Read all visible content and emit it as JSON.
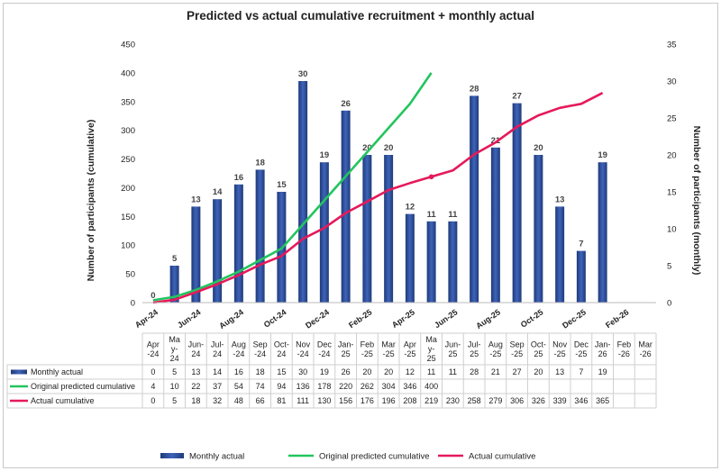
{
  "chart_data": {
    "type": "bar",
    "title": "Predicted vs actual cumulative recruitment + monthly actual",
    "ylabel_left": "Number of participants (cumulative)",
    "ylabel_right": "Number of participants (monthly)",
    "ylim_left": [
      0,
      450
    ],
    "yticks_left": [
      "0",
      "50",
      "100",
      "150",
      "200",
      "250",
      "300",
      "350",
      "400",
      "450"
    ],
    "ylim_right": [
      0,
      35
    ],
    "yticks_right": [
      "0",
      "5",
      "10",
      "15",
      "20",
      "25",
      "30",
      "35"
    ],
    "x_axis_labels": [
      "Apr-24",
      "Jun-24",
      "Aug-24",
      "Oct-24",
      "Dec-24",
      "Feb-25",
      "Apr-25",
      "Jun-25",
      "Aug-25",
      "Oct-25",
      "Dec-25",
      "Feb-26"
    ],
    "categories": [
      [
        "Apr",
        "-24"
      ],
      [
        "Ma",
        "y-",
        "24"
      ],
      [
        "Jun-",
        "24"
      ],
      [
        "Jul-",
        "24"
      ],
      [
        "Aug",
        "-24"
      ],
      [
        "Sep",
        "-24"
      ],
      [
        "Oct-",
        "24"
      ],
      [
        "Nov",
        "-24"
      ],
      [
        "Dec",
        "-24"
      ],
      [
        "Jan-",
        "25"
      ],
      [
        "Feb",
        "-25"
      ],
      [
        "Mar",
        "-25"
      ],
      [
        "Apr",
        "-25"
      ],
      [
        "Ma",
        "y-",
        "25"
      ],
      [
        "Jun-",
        "25"
      ],
      [
        "Jul-",
        "25"
      ],
      [
        "Aug",
        "-25"
      ],
      [
        "Sep",
        "-25"
      ],
      [
        "Oct-",
        "25"
      ],
      [
        "Nov",
        "-25"
      ],
      [
        "Dec",
        "-25"
      ],
      [
        "Jan-",
        "26"
      ],
      [
        "Feb",
        "-26"
      ],
      [
        "Mar",
        "-26"
      ]
    ],
    "series": [
      {
        "name": "Monthly actual",
        "kind": "bar",
        "axis": "right",
        "color": "#2f4f9c",
        "values": [
          0,
          5,
          13,
          14,
          16,
          18,
          15,
          30,
          19,
          26,
          20,
          20,
          12,
          11,
          11,
          28,
          21,
          27,
          20,
          13,
          7,
          19,
          null,
          null
        ]
      },
      {
        "name": "Original predicted cumulative",
        "kind": "line",
        "axis": "left",
        "color": "#22c55e",
        "values": [
          4,
          10,
          22,
          37,
          54,
          74,
          94,
          136,
          178,
          220,
          262,
          304,
          346,
          400,
          null,
          null,
          null,
          null,
          null,
          null,
          null,
          null,
          null,
          null
        ]
      },
      {
        "name": "Actual cumulative",
        "kind": "line",
        "axis": "left",
        "color": "#e6195a",
        "values": [
          0,
          5,
          18,
          32,
          48,
          66,
          81,
          111,
          130,
          156,
          176,
          196,
          208,
          219,
          230,
          258,
          279,
          306,
          326,
          339,
          346,
          365,
          null,
          null
        ]
      }
    ],
    "legend_position": "bottom",
    "data_table": true
  }
}
